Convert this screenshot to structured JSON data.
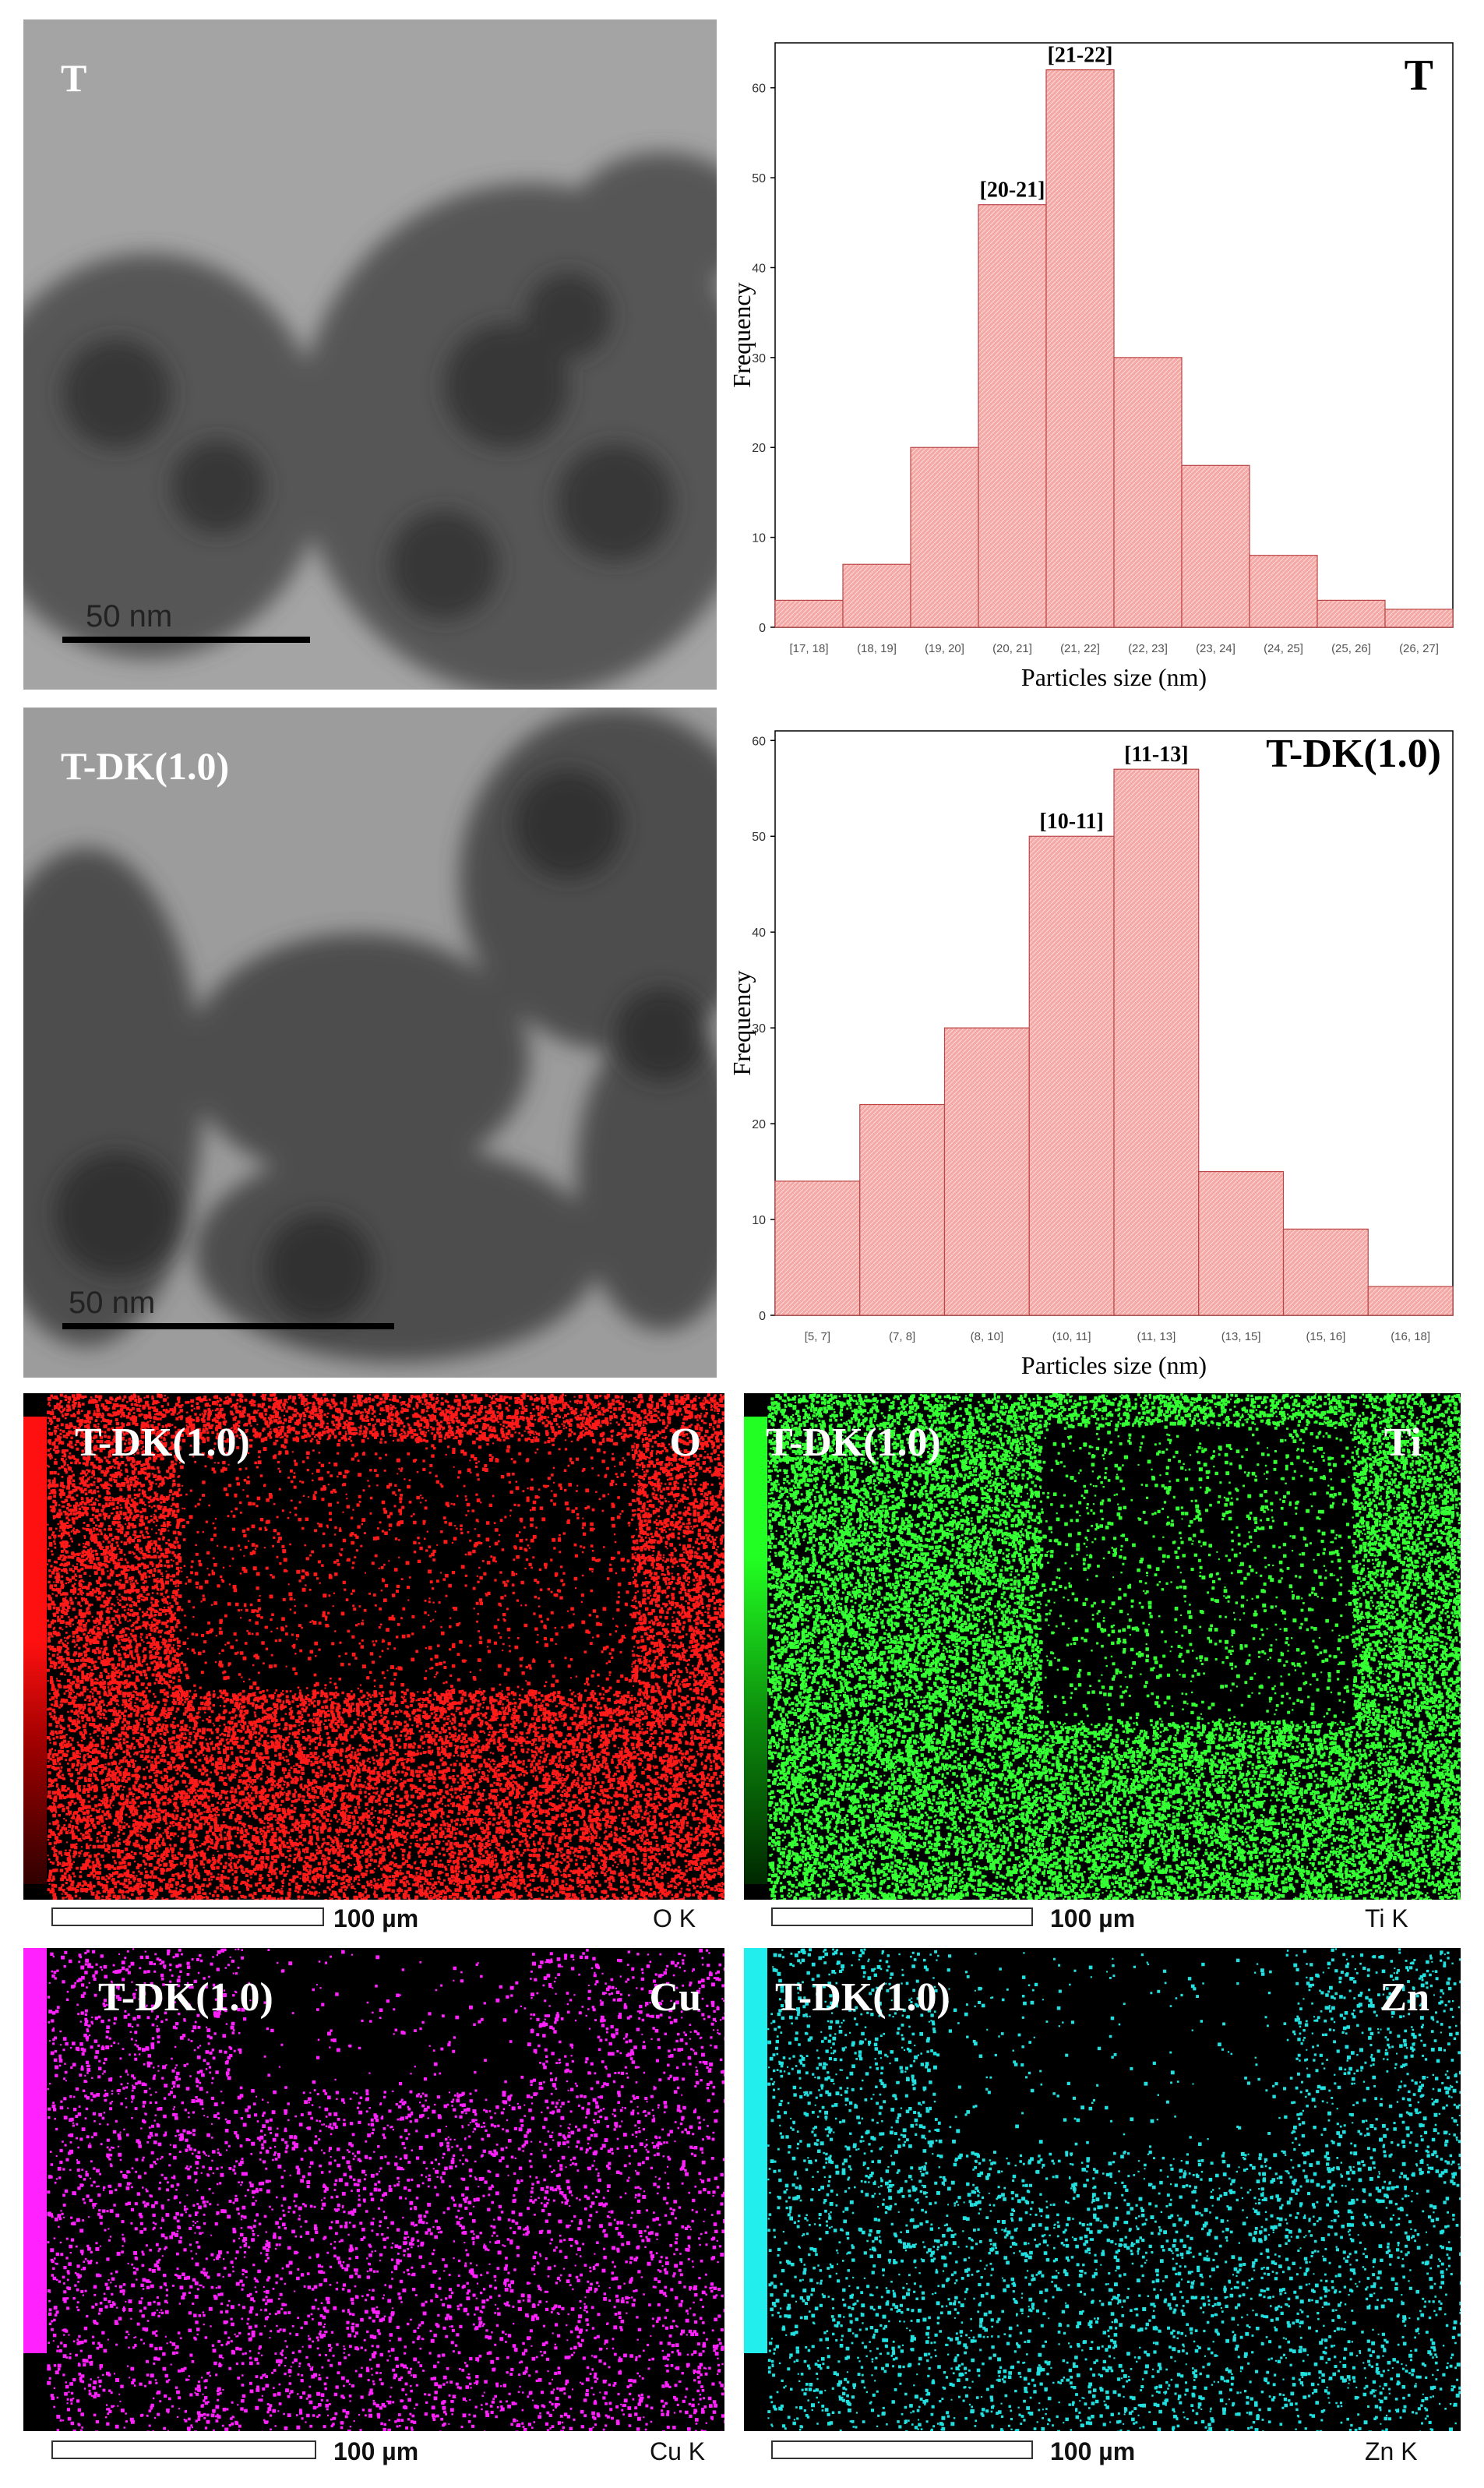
{
  "tem_images": [
    {
      "label": "T",
      "scale": "50 nm"
    },
    {
      "label": "T-DK(1.0)",
      "scale": "50 nm"
    }
  ],
  "chart_data": [
    {
      "type": "bar",
      "corner_label": "T",
      "xlabel": "Particles size (nm)",
      "ylabel": "Frequency",
      "categories": [
        "[17, 18]",
        "(18, 19]",
        "(19, 20]",
        "(20, 21]",
        "(21, 22]",
        "(22, 23]",
        "(23, 24]",
        "(24, 25]",
        "(25, 26]",
        "(26, 27]"
      ],
      "values": [
        3,
        7,
        20,
        47,
        62,
        30,
        18,
        8,
        3,
        2
      ],
      "ylim": [
        0,
        65
      ],
      "yticks": [
        0,
        10,
        20,
        30,
        40,
        50,
        60
      ],
      "annotations": [
        {
          "category_index": 3,
          "text": "[20-21]"
        },
        {
          "category_index": 4,
          "text": "[21-22]"
        }
      ],
      "color": "#f4a9a6"
    },
    {
      "type": "bar",
      "corner_label": "T-DK(1.0)",
      "xlabel": "Particles size (nm)",
      "ylabel": "Frequency",
      "categories": [
        "[5, 7]",
        "(7, 8]",
        "(8, 10]",
        "(10, 11]",
        "(11, 13]",
        "(13, 15]",
        "(15, 16]",
        "(16, 18]"
      ],
      "values": [
        14,
        22,
        30,
        50,
        57,
        15,
        9,
        3
      ],
      "ylim": [
        0,
        61
      ],
      "yticks": [
        0,
        10,
        20,
        30,
        40,
        50,
        60
      ],
      "annotations": [
        {
          "category_index": 3,
          "text": "[10-11]"
        },
        {
          "category_index": 4,
          "text": "[11-13]"
        }
      ],
      "color": "#f4a9a6"
    }
  ],
  "maps": [
    {
      "label": "T-DK(1.0)",
      "element": "O",
      "scale": "100 µm",
      "key": "O K",
      "color": "#ff1a1a"
    },
    {
      "label": "T-DK(1.0)",
      "element": "Ti",
      "scale": "100 µm",
      "key": "Ti K",
      "color": "#33ff33"
    },
    {
      "label": "T-DK(1.0)",
      "element": "Cu",
      "scale": "100 µm",
      "key": "Cu K",
      "color": "#ff22ff"
    },
    {
      "label": "T-DK(1.0)",
      "element": "Zn",
      "scale": "100 µm",
      "key": "Zn K",
      "color": "#22e0e0"
    }
  ]
}
